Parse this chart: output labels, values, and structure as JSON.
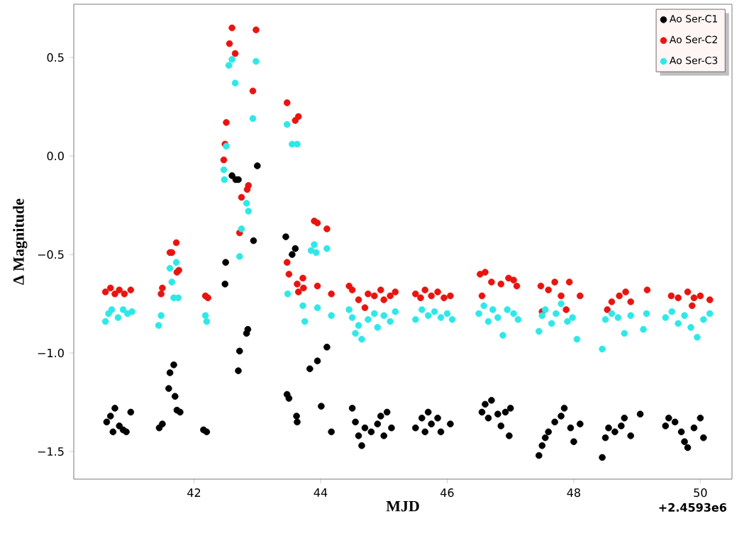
{
  "chart_data": {
    "type": "scatter",
    "xlabel": "MJD",
    "ylabel": "Δ Magnitude",
    "annotations": [
      "+2.4593e6"
    ],
    "xlim": [
      40.1,
      50.5
    ],
    "ylim": [
      -1.64,
      0.77
    ],
    "xticks": [
      42,
      44,
      46,
      48,
      50
    ],
    "yticks": [
      {
        "value": -1.5,
        "label": "−1.5"
      },
      {
        "value": -1.0,
        "label": "−1.0"
      },
      {
        "value": -0.5,
        "label": "−0.5"
      },
      {
        "value": 0.0,
        "label": "0.0"
      },
      {
        "value": 0.5,
        "label": "0.5"
      }
    ],
    "grid": false,
    "legend": "top right",
    "marker": "circle",
    "series": [
      {
        "name": "Ao Ser-C1",
        "color": "#000000",
        "x": [
          40.62,
          40.68,
          40.72,
          40.75,
          40.82,
          40.88,
          40.93,
          41.0,
          41.45,
          41.5,
          41.6,
          41.62,
          41.68,
          41.7,
          41.73,
          41.78,
          42.15,
          42.2,
          42.49,
          42.5,
          42.6,
          42.66,
          42.7,
          43.0,
          42.94,
          42.85,
          42.83,
          42.72,
          42.7,
          43.45,
          43.55,
          43.6,
          43.47,
          43.5,
          43.62,
          43.63,
          43.83,
          43.95,
          44.1,
          44.01,
          44.17,
          44.5,
          44.55,
          44.6,
          44.65,
          44.7,
          44.8,
          44.9,
          44.95,
          45.0,
          45.05,
          45.12,
          45.5,
          45.6,
          45.65,
          45.7,
          45.75,
          45.85,
          45.9,
          46.05,
          46.55,
          46.6,
          46.65,
          46.7,
          46.8,
          46.85,
          46.92,
          46.98,
          47.0,
          47.45,
          47.5,
          47.55,
          47.6,
          47.7,
          47.8,
          47.85,
          47.95,
          48.0,
          48.1,
          48.45,
          48.5,
          48.55,
          48.65,
          48.75,
          48.8,
          48.9,
          49.05,
          49.45,
          49.5,
          49.6,
          49.7,
          49.75,
          49.8,
          49.9,
          50.0,
          50.05
        ],
        "values": [
          -1.35,
          -1.32,
          -1.4,
          -1.28,
          -1.37,
          -1.39,
          -1.4,
          -1.3,
          -1.38,
          -1.36,
          -1.18,
          -1.1,
          -1.06,
          -1.22,
          -1.29,
          -1.3,
          -1.39,
          -1.4,
          -0.65,
          -0.54,
          -0.1,
          -0.12,
          -0.12,
          -0.05,
          -0.43,
          -0.88,
          -0.9,
          -0.99,
          -1.09,
          -0.41,
          -0.5,
          -0.47,
          -1.21,
          -1.23,
          -1.32,
          -1.35,
          -1.08,
          -1.04,
          -0.97,
          -1.27,
          -1.4,
          -1.28,
          -1.35,
          -1.42,
          -1.47,
          -1.38,
          -1.4,
          -1.36,
          -1.32,
          -1.42,
          -1.3,
          -1.38,
          -1.38,
          -1.33,
          -1.4,
          -1.3,
          -1.36,
          -1.33,
          -1.4,
          -1.36,
          -1.3,
          -1.26,
          -1.33,
          -1.24,
          -1.31,
          -1.37,
          -1.3,
          -1.42,
          -1.28,
          -1.52,
          -1.47,
          -1.43,
          -1.4,
          -1.35,
          -1.32,
          -1.28,
          -1.38,
          -1.45,
          -1.36,
          -1.53,
          -1.43,
          -1.38,
          -1.4,
          -1.37,
          -1.33,
          -1.42,
          -1.31,
          -1.37,
          -1.33,
          -1.35,
          -1.4,
          -1.45,
          -1.48,
          -1.38,
          -1.33,
          -1.43
        ]
      },
      {
        "name": "Ao Ser-C2",
        "color": "#e8140f",
        "x": [
          40.6,
          40.68,
          40.75,
          40.82,
          40.9,
          41.0,
          41.48,
          41.5,
          41.62,
          41.65,
          41.72,
          41.73,
          41.76,
          42.18,
          42.22,
          42.51,
          42.47,
          42.49,
          42.56,
          42.6,
          42.65,
          42.98,
          42.93,
          42.86,
          42.84,
          42.75,
          42.72,
          43.47,
          43.6,
          43.65,
          43.47,
          43.5,
          43.63,
          43.65,
          43.9,
          43.95,
          44.1,
          43.95,
          44.17,
          43.72,
          43.73,
          44.45,
          44.5,
          44.6,
          44.7,
          44.75,
          44.85,
          44.95,
          45.0,
          45.1,
          45.18,
          45.5,
          45.58,
          45.65,
          45.75,
          45.85,
          45.95,
          46.05,
          46.52,
          46.6,
          46.55,
          46.7,
          46.85,
          46.97,
          47.05,
          47.1,
          47.48,
          47.6,
          47.7,
          47.8,
          47.93,
          47.88,
          48.1,
          47.5,
          48.53,
          48.6,
          48.72,
          48.82,
          48.9,
          49.16,
          49.54,
          49.65,
          49.8,
          49.9,
          50.0,
          50.15,
          49.87
        ],
        "values": [
          -0.69,
          -0.67,
          -0.7,
          -0.68,
          -0.7,
          -0.68,
          -0.7,
          -0.67,
          -0.49,
          -0.49,
          -0.44,
          -0.59,
          -0.58,
          -0.71,
          -0.72,
          0.17,
          -0.02,
          0.06,
          0.57,
          0.65,
          0.52,
          0.64,
          0.33,
          -0.15,
          -0.17,
          -0.21,
          -0.39,
          0.27,
          0.18,
          0.2,
          -0.54,
          -0.6,
          -0.65,
          -0.69,
          -0.33,
          -0.34,
          -0.37,
          -0.66,
          -0.7,
          -0.62,
          -0.67,
          -0.66,
          -0.68,
          -0.73,
          -0.77,
          -0.7,
          -0.71,
          -0.68,
          -0.73,
          -0.71,
          -0.69,
          -0.7,
          -0.72,
          -0.68,
          -0.71,
          -0.69,
          -0.72,
          -0.71,
          -0.6,
          -0.59,
          -0.71,
          -0.64,
          -0.65,
          -0.62,
          -0.63,
          -0.66,
          -0.66,
          -0.68,
          -0.64,
          -0.71,
          -0.64,
          -0.78,
          -0.71,
          -0.79,
          -0.78,
          -0.74,
          -0.71,
          -0.69,
          -0.74,
          -0.68,
          -0.71,
          -0.72,
          -0.69,
          -0.72,
          -0.71,
          -0.73,
          -0.76
        ]
      },
      {
        "name": "Ao Ser-C3",
        "color": "#2ee8e8",
        "x": [
          40.6,
          40.65,
          40.7,
          40.8,
          40.88,
          40.95,
          41.02,
          41.44,
          41.48,
          41.62,
          41.65,
          41.72,
          41.68,
          41.75,
          42.18,
          42.2,
          42.48,
          42.47,
          42.51,
          42.55,
          42.6,
          42.65,
          42.98,
          42.93,
          42.86,
          42.83,
          42.75,
          42.72,
          43.47,
          43.55,
          43.63,
          43.48,
          43.9,
          43.93,
          44.1,
          43.85,
          43.95,
          44.17,
          43.72,
          43.75,
          44.45,
          44.5,
          44.55,
          44.6,
          44.65,
          44.75,
          44.85,
          44.9,
          45.0,
          45.1,
          45.18,
          45.5,
          45.6,
          45.7,
          45.8,
          45.9,
          46.0,
          46.08,
          46.5,
          46.58,
          46.65,
          46.72,
          46.8,
          46.88,
          46.95,
          47.05,
          47.12,
          47.45,
          47.5,
          47.55,
          47.65,
          47.72,
          47.8,
          47.9,
          47.98,
          48.05,
          48.45,
          48.5,
          48.6,
          48.7,
          48.8,
          48.9,
          49.1,
          49.15,
          49.45,
          49.55,
          49.65,
          49.75,
          49.85,
          49.95,
          50.05,
          50.15
        ],
        "values": [
          -0.84,
          -0.8,
          -0.78,
          -0.82,
          -0.78,
          -0.8,
          -0.79,
          -0.86,
          -0.81,
          -0.57,
          -0.64,
          -0.54,
          -0.72,
          -0.72,
          -0.81,
          -0.84,
          -0.12,
          -0.07,
          0.05,
          0.46,
          0.49,
          0.37,
          0.48,
          0.19,
          -0.28,
          -0.24,
          -0.37,
          -0.51,
          0.16,
          0.06,
          0.06,
          -0.7,
          -0.45,
          -0.49,
          -0.47,
          -0.48,
          -0.77,
          -0.81,
          -0.76,
          -0.84,
          -0.78,
          -0.82,
          -0.9,
          -0.86,
          -0.93,
          -0.83,
          -0.8,
          -0.87,
          -0.81,
          -0.84,
          -0.79,
          -0.83,
          -0.78,
          -0.81,
          -0.79,
          -0.82,
          -0.8,
          -0.83,
          -0.8,
          -0.76,
          -0.84,
          -0.78,
          -0.82,
          -0.91,
          -0.78,
          -0.8,
          -0.83,
          -0.89,
          -0.81,
          -0.78,
          -0.85,
          -0.8,
          -0.75,
          -0.84,
          -0.82,
          -0.93,
          -0.98,
          -0.83,
          -0.8,
          -0.82,
          -0.9,
          -0.81,
          -0.88,
          -0.8,
          -0.82,
          -0.79,
          -0.85,
          -0.81,
          -0.87,
          -0.92,
          -0.83,
          -0.8
        ]
      }
    ]
  }
}
